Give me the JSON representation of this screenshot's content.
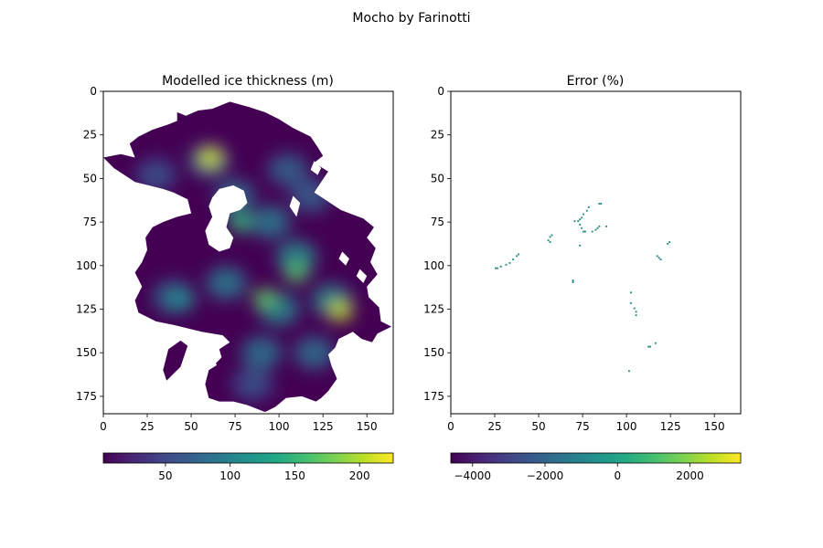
{
  "figure": {
    "suptitle": "Mocho by Farinotti"
  },
  "chart_data": [
    {
      "type": "heatmap",
      "title": "Modelled ice thickness (m)",
      "colormap": "viridis",
      "xlim": [
        0,
        165
      ],
      "ylim": [
        185,
        0
      ],
      "y_inverted": true,
      "xticks": [
        "0",
        "25",
        "50",
        "75",
        "100",
        "125",
        "150"
      ],
      "yticks": [
        "0",
        "25",
        "50",
        "75",
        "100",
        "125",
        "150",
        "175"
      ],
      "colorbar": {
        "orientation": "horizontal",
        "range": [
          2,
          226
        ],
        "ticks": [
          "50",
          "100",
          "150",
          "200"
        ]
      },
      "peaks": [
        {
          "x": 61,
          "y": 38,
          "value": 210
        },
        {
          "x": 135,
          "y": 126,
          "value": 205
        },
        {
          "x": 92,
          "y": 119,
          "value": 170
        },
        {
          "x": 110,
          "y": 104,
          "value": 165
        },
        {
          "x": 45,
          "y": 120,
          "value": 110
        },
        {
          "x": 78,
          "y": 75,
          "value": 150
        }
      ]
    },
    {
      "type": "heatmap",
      "title": "Error (%)",
      "colormap": "viridis",
      "xlim": [
        0,
        165
      ],
      "ylim": [
        185,
        0
      ],
      "y_inverted": true,
      "xticks": [
        "0",
        "25",
        "50",
        "75",
        "100",
        "125",
        "150"
      ],
      "yticks": [
        "0",
        "25",
        "50",
        "75",
        "100",
        "125",
        "150",
        "175"
      ],
      "colorbar": {
        "orientation": "horizontal",
        "range": [
          -4600,
          3400
        ],
        "ticks": [
          "−4000",
          "−2000",
          "0",
          "2000"
        ]
      },
      "cell_color": "#2a8f89",
      "points": [
        [
          25,
          101
        ],
        [
          26,
          101
        ],
        [
          28,
          100
        ],
        [
          31,
          99
        ],
        [
          33,
          98
        ],
        [
          35,
          96
        ],
        [
          37,
          94
        ],
        [
          38,
          93
        ],
        [
          56,
          83
        ],
        [
          57,
          82
        ],
        [
          55,
          85
        ],
        [
          56,
          86
        ],
        [
          69,
          108
        ],
        [
          69,
          109
        ],
        [
          70,
          74
        ],
        [
          72,
          74
        ],
        [
          73,
          73
        ],
        [
          74,
          72
        ],
        [
          75,
          70
        ],
        [
          77,
          68
        ],
        [
          78,
          66
        ],
        [
          73,
          76
        ],
        [
          74,
          78
        ],
        [
          75,
          80
        ],
        [
          76,
          80
        ],
        [
          73,
          88
        ],
        [
          80,
          80
        ],
        [
          82,
          79
        ],
        [
          83,
          78
        ],
        [
          84,
          77
        ],
        [
          88,
          77
        ],
        [
          84,
          64
        ],
        [
          85,
          64
        ],
        [
          102,
          115
        ],
        [
          102,
          121
        ],
        [
          104,
          124
        ],
        [
          105,
          126
        ],
        [
          105,
          128
        ],
        [
          101,
          160
        ],
        [
          112,
          146
        ],
        [
          113,
          146
        ],
        [
          116,
          144
        ],
        [
          117,
          94
        ],
        [
          118,
          95
        ],
        [
          119,
          96
        ],
        [
          123,
          87
        ],
        [
          124,
          86
        ]
      ]
    }
  ]
}
